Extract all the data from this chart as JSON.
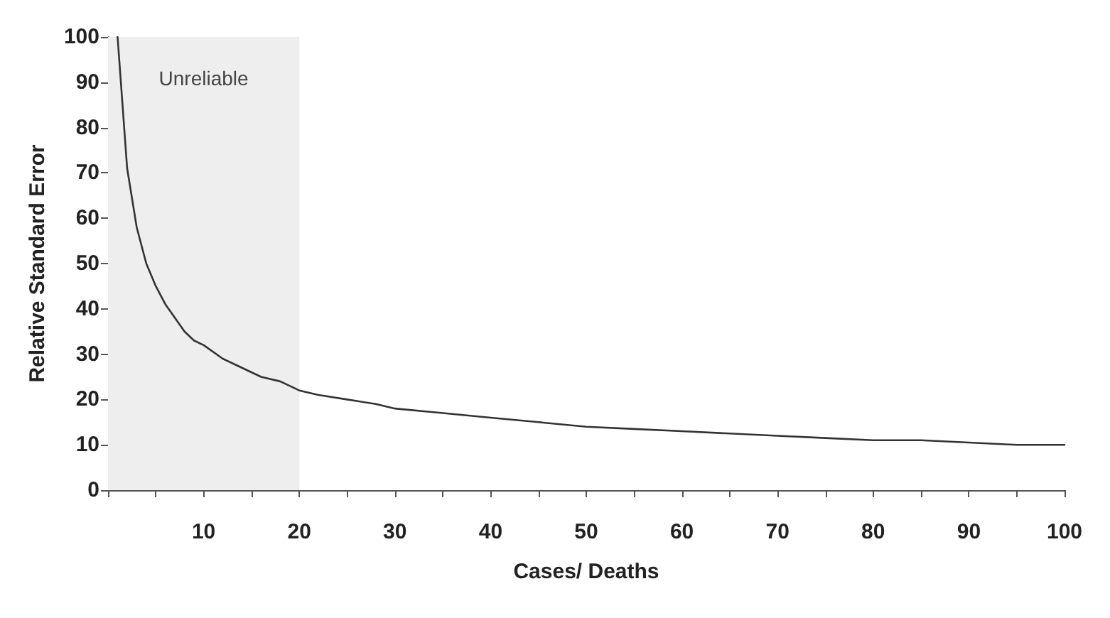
{
  "chart_data": {
    "type": "line",
    "xlabel": "Cases/ Deaths",
    "ylabel": "Relative Standard Error",
    "x": [
      1,
      2,
      3,
      4,
      5,
      6,
      7,
      8,
      9,
      10,
      12,
      14,
      16,
      18,
      20,
      22,
      25,
      28,
      30,
      35,
      40,
      45,
      50,
      55,
      60,
      65,
      70,
      75,
      80,
      85,
      90,
      95,
      100
    ],
    "series": [
      {
        "color": "#333333",
        "values": [
          100,
          71,
          58,
          50,
          45,
          41,
          38,
          35,
          33,
          32,
          29,
          27,
          25,
          24,
          22,
          21,
          20,
          19,
          18,
          17,
          16,
          15,
          14,
          13.5,
          13,
          12.5,
          12,
          11.5,
          11,
          11,
          10.5,
          10,
          10
        ]
      }
    ],
    "xlim": [
      0,
      100
    ],
    "xticks": [
      {
        "value": 0,
        "label": null
      },
      {
        "value": 5,
        "label": null
      },
      10,
      {
        "value": 15,
        "label": null
      },
      20,
      {
        "value": 25,
        "label": null
      },
      30,
      {
        "value": 35,
        "label": null
      },
      40,
      {
        "value": 45,
        "label": null
      },
      50,
      {
        "value": 55,
        "label": null
      },
      60,
      {
        "value": 65,
        "label": null
      },
      70,
      {
        "value": 75,
        "label": null
      },
      80,
      {
        "value": 85,
        "label": null
      },
      90,
      {
        "value": 95,
        "label": null
      },
      100
    ],
    "ylim": [
      0,
      100
    ],
    "yticks": [
      0,
      10,
      20,
      30,
      40,
      50,
      60,
      70,
      80,
      90,
      100
    ],
    "bands": [
      {
        "axis": "x",
        "from": 0,
        "to": 20,
        "label": "Unreliable",
        "color": "#eeeeee"
      }
    ],
    "grid": false,
    "marker": "none",
    "line_style": "solid"
  }
}
